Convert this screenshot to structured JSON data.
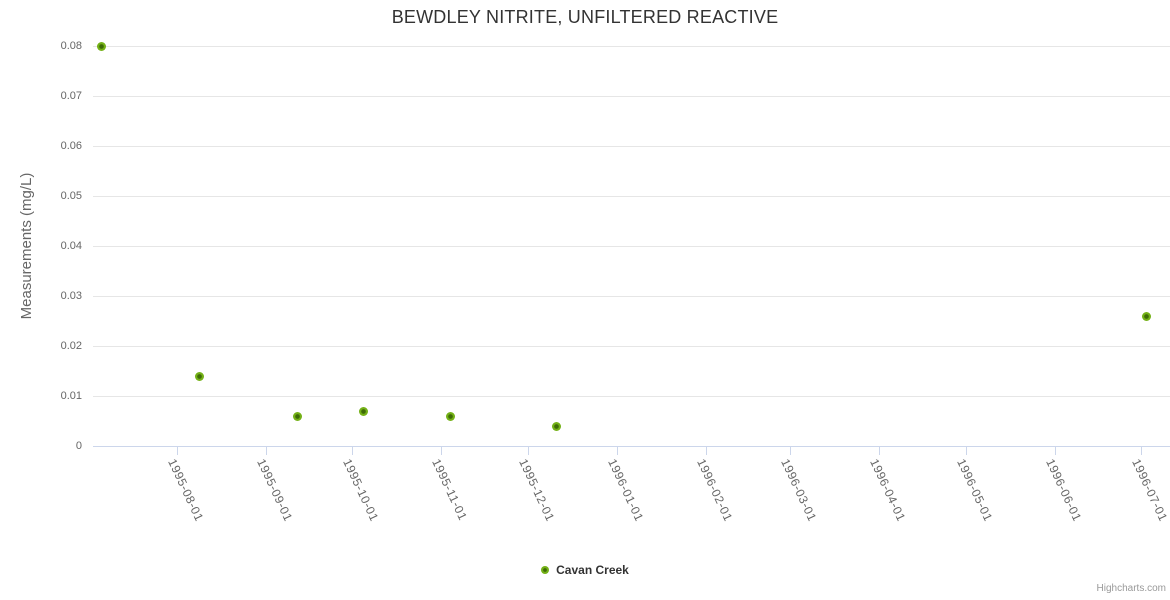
{
  "title": "BEWDLEY NITRITE, UNFILTERED REACTIVE",
  "credit": "Highcharts.com",
  "chart_data": {
    "type": "scatter",
    "title": "BEWDLEY NITRITE, UNFILTERED REACTIVE",
    "xlabel": "",
    "ylabel": "Measurements (mg/L)",
    "ylim": [
      0,
      0.08
    ],
    "y_ticks": [
      {
        "value": 0,
        "label": "0"
      },
      {
        "value": 0.01,
        "label": "0.01"
      },
      {
        "value": 0.02,
        "label": "0.02"
      },
      {
        "value": 0.03,
        "label": "0.03"
      },
      {
        "value": 0.04,
        "label": "0.04"
      },
      {
        "value": 0.05,
        "label": "0.05"
      },
      {
        "value": 0.06,
        "label": "0.06"
      },
      {
        "value": 0.07,
        "label": "0.07"
      },
      {
        "value": 0.08,
        "label": "0.08"
      }
    ],
    "x_ticks": [
      "1995-08-01",
      "1995-09-01",
      "1995-10-01",
      "1995-11-01",
      "1995-12-01",
      "1996-01-01",
      "1996-02-01",
      "1996-03-01",
      "1996-04-01",
      "1996-05-01",
      "1996-06-01",
      "1996-07-01"
    ],
    "x_range": [
      "1995-07-03",
      "1996-07-11"
    ],
    "grid": "horizontal-only",
    "legend_position": "bottom-center",
    "series": [
      {
        "name": "Cavan Creek",
        "color": "#74b117",
        "marker_core_color": "#3e6b07",
        "points": [
          {
            "date": "1995-07-06",
            "value": 0.08
          },
          {
            "date": "1995-08-09",
            "value": 0.014
          },
          {
            "date": "1995-09-12",
            "value": 0.006
          },
          {
            "date": "1995-10-05",
            "value": 0.007
          },
          {
            "date": "1995-11-04",
            "value": 0.006
          },
          {
            "date": "1995-12-11",
            "value": 0.004
          },
          {
            "date": "1996-07-03",
            "value": 0.026
          }
        ]
      }
    ],
    "colors": {
      "grid": "#e6e6e6",
      "axis": "#ccd6eb",
      "title_text": "#333333",
      "axis_label_text": "#666666",
      "legend_text": "#333333",
      "credit_text": "#999999"
    }
  }
}
